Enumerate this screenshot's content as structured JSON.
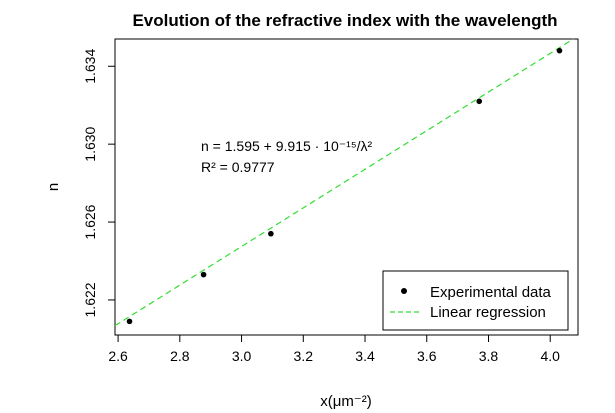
{
  "chart_data": {
    "type": "scatter",
    "title": "Evolution of the refractive index with the wavelength",
    "xlabel": "x(μm⁻²)",
    "ylabel": "n",
    "xlim": [
      2.59,
      4.09
    ],
    "ylim": [
      1.6202,
      1.6354
    ],
    "x_ticks": [
      2.6,
      2.8,
      3.0,
      3.2,
      3.4,
      3.6,
      3.8,
      4.0
    ],
    "x_tick_labels": [
      "2.6",
      "2.8",
      "3.0",
      "3.2",
      "3.4",
      "3.6",
      "3.8",
      "4.0"
    ],
    "y_ticks": [
      1.622,
      1.626,
      1.63,
      1.634
    ],
    "y_tick_labels": [
      "1.622",
      "1.626",
      "1.630",
      "1.634"
    ],
    "grid": false,
    "series": [
      {
        "name": "Experimental data",
        "style": "points",
        "color": "#000000",
        "x": [
          2.637,
          2.877,
          3.095,
          3.77,
          4.03
        ],
        "y": [
          1.6209,
          1.6233,
          1.6254,
          1.6322,
          1.6348
        ]
      },
      {
        "name": "Linear regression",
        "style": "dashed-line",
        "color": "#33dd33",
        "intercept": 1.595,
        "slope": 0.009915
      }
    ],
    "annotations": {
      "equation": "n = 1.595 + 9.915 · 10⁻¹⁵/λ²",
      "r2": "R² = 0.9777"
    },
    "legend": {
      "position": "bottom-right",
      "entries": [
        "Experimental data",
        "Linear regression"
      ]
    }
  }
}
